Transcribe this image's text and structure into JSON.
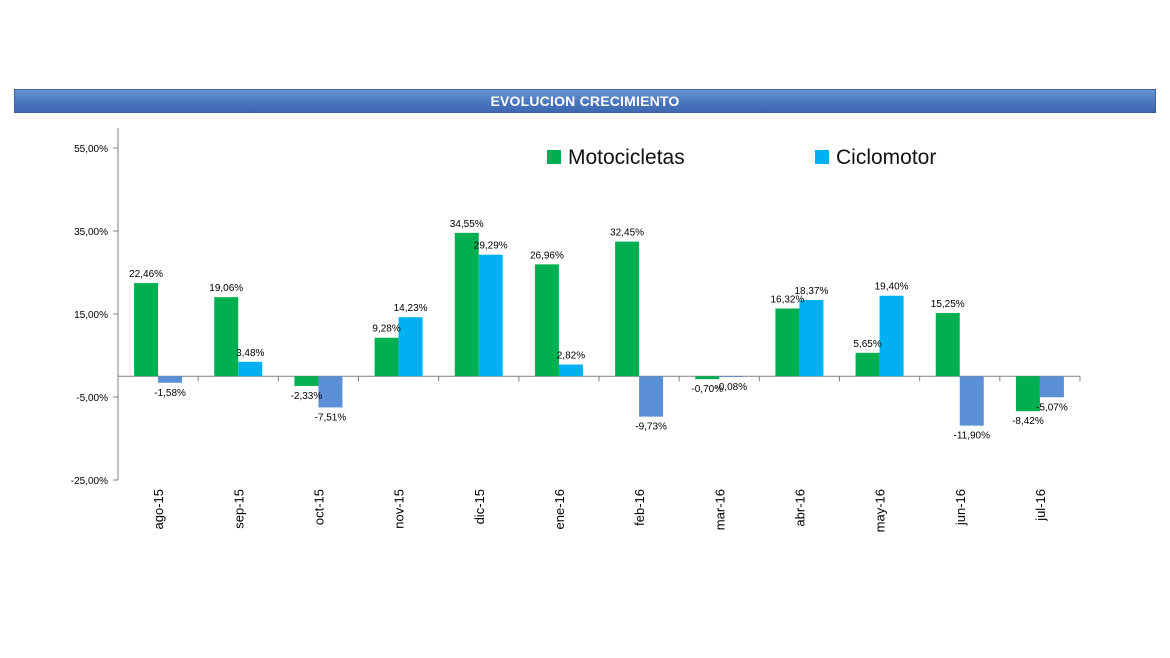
{
  "chart_data": {
    "type": "bar",
    "title": "EVOLUCION CRECIMIENTO",
    "categories": [
      "ago-15",
      "sep-15",
      "oct-15",
      "nov-15",
      "dic-15",
      "ene-16",
      "feb-16",
      "mar-16",
      "abr-16",
      "may-16",
      "jun-16",
      "jul-16"
    ],
    "series": [
      {
        "name": "Motocicletas",
        "color": "#00b050",
        "negative_color": "#00b050",
        "values": [
          22.46,
          19.06,
          -2.33,
          9.28,
          34.55,
          26.96,
          32.45,
          -0.7,
          16.32,
          5.65,
          15.25,
          -8.42
        ],
        "labels": [
          "22,46%",
          "19,06%",
          "-2,33%",
          "9,28%",
          "34,55%",
          "26,96%",
          "32,45%",
          "-0,70%",
          "16,32%",
          "5,65%",
          "15,25%",
          "-8,42%"
        ]
      },
      {
        "name": "Ciclomotor",
        "color": "#00b0f0",
        "negative_color": "#5b8fd6",
        "values": [
          -1.58,
          3.48,
          -7.51,
          14.23,
          29.29,
          2.82,
          -9.73,
          -0.08,
          18.37,
          19.4,
          -11.9,
          -5.07
        ],
        "labels": [
          "-1,58%",
          "3,48%",
          "-7,51%",
          "14,23%",
          "29,29%",
          "2,82%",
          "-9,73%",
          "-0,08%",
          "18,37%",
          "19,40%",
          "-11,90%",
          "-5,07%"
        ]
      }
    ],
    "y_ticks": [
      55,
      35,
      15,
      -5,
      -25
    ],
    "y_tick_labels": [
      "55,00%",
      "35,00%",
      "15,00%",
      "-5,00%",
      "-25,00%"
    ],
    "ylim": [
      -25,
      55
    ],
    "xlabel": "",
    "ylabel": "",
    "grid": false,
    "legend_position": "top-right"
  }
}
